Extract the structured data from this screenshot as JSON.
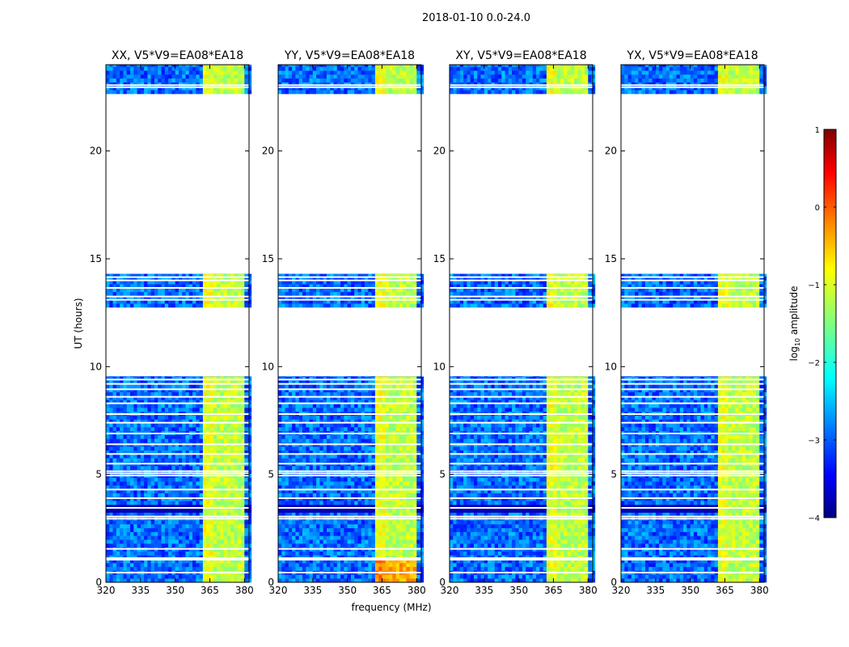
{
  "chart_data": {
    "type": "heatmap",
    "title": "2018-01-10 0.0-24.0",
    "xlabel": "frequency (MHz)",
    "ylabel": "UT (hours)",
    "xlim": [
      320,
      382
    ],
    "ylim": [
      0,
      24
    ],
    "x_ticks": [
      320,
      335,
      350,
      365,
      380
    ],
    "y_ticks": [
      0,
      5,
      10,
      15,
      20
    ],
    "panels": [
      {
        "name": "XX",
        "title": "XX, V5*V9=EA08*EA18"
      },
      {
        "name": "YY",
        "title": "YY, V5*V9=EA08*EA18"
      },
      {
        "name": "XY",
        "title": "XY, V5*V9=EA08*EA18"
      },
      {
        "name": "YX",
        "title": "YX, V5*V9=EA08*EA18"
      }
    ],
    "data_blocks_ut_hours": [
      [
        0,
        9.55
      ],
      [
        12.75,
        14.3
      ],
      [
        22.65,
        24
      ]
    ],
    "bright_band_mhz": [
      362,
      380
    ],
    "colorbar": {
      "label": "log10 amplitude",
      "label_main": "log",
      "label_sub": "10",
      "label_tail": " amplitude",
      "min": -4,
      "max": 1,
      "ticks": [
        -4,
        -3,
        -2,
        -1,
        0,
        1
      ],
      "tick_labels": [
        "−4",
        "−3",
        "−2",
        "−1",
        "0",
        "1"
      ],
      "colormap": "jet"
    }
  }
}
